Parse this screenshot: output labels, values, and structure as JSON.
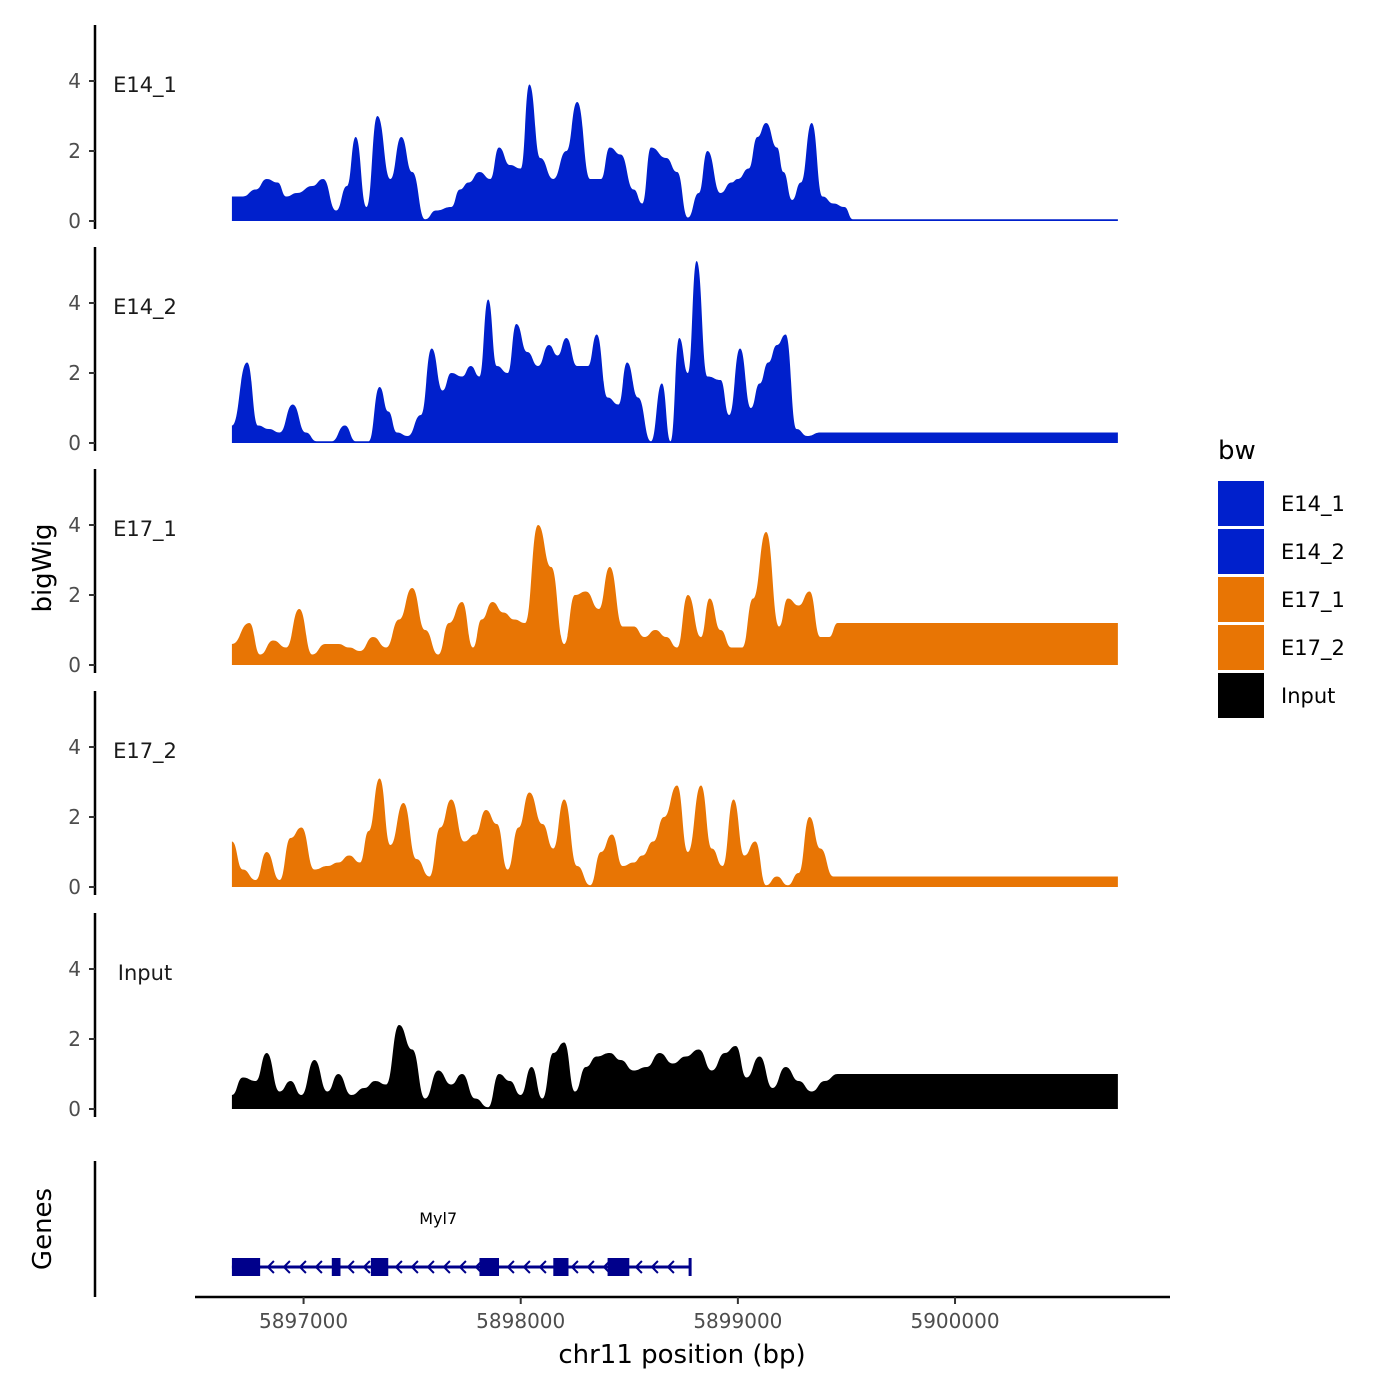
{
  "chart_data": {
    "type": "area",
    "x_axis": {
      "label": "chr11 position (bp)",
      "range": [
        5896500,
        5900990
      ],
      "ticks": [
        5897000,
        5898000,
        5899000,
        5900000
      ],
      "tick_labels": [
        "5897000",
        "5898000",
        "5899000",
        "5900000"
      ]
    },
    "y_axis": {
      "label": "bigWig",
      "range": [
        0,
        5.6
      ],
      "ticks": [
        0,
        2,
        4
      ],
      "tick_labels": [
        "0",
        "2",
        "4"
      ]
    },
    "data_start": 5896670,
    "data_end": 5900750,
    "series": [
      {
        "name": "E14_1",
        "color": "#0020CC",
        "peaks": [
          [
            5896670,
            0.7
          ],
          [
            5896720,
            0.7
          ],
          [
            5896780,
            0.9
          ],
          [
            5896830,
            1.2
          ],
          [
            5896880,
            1.1
          ],
          [
            5896920,
            0.7
          ],
          [
            5896970,
            0.8
          ],
          [
            5897040,
            1.0
          ],
          [
            5897090,
            1.2
          ],
          [
            5897150,
            0.3
          ],
          [
            5897200,
            1.0
          ],
          [
            5897240,
            2.4
          ],
          [
            5897290,
            0.4
          ],
          [
            5897340,
            3.0
          ],
          [
            5897400,
            1.2
          ],
          [
            5897450,
            2.4
          ],
          [
            5897500,
            1.4
          ],
          [
            5897560,
            0.05
          ],
          [
            5897610,
            0.3
          ],
          [
            5897680,
            0.4
          ],
          [
            5897720,
            0.9
          ],
          [
            5897760,
            1.1
          ],
          [
            5897810,
            1.4
          ],
          [
            5897860,
            1.2
          ],
          [
            5897900,
            2.1
          ],
          [
            5897950,
            1.6
          ],
          [
            5898000,
            1.5
          ],
          [
            5898040,
            3.9
          ],
          [
            5898090,
            1.8
          ],
          [
            5898150,
            1.2
          ],
          [
            5898210,
            2.0
          ],
          [
            5898260,
            3.4
          ],
          [
            5898320,
            1.2
          ],
          [
            5898370,
            1.2
          ],
          [
            5898410,
            2.1
          ],
          [
            5898460,
            1.9
          ],
          [
            5898520,
            0.9
          ],
          [
            5898560,
            0.5
          ],
          [
            5898600,
            2.1
          ],
          [
            5898670,
            1.8
          ],
          [
            5898720,
            1.4
          ],
          [
            5898770,
            0.1
          ],
          [
            5898820,
            0.8
          ],
          [
            5898860,
            2.0
          ],
          [
            5898920,
            0.8
          ],
          [
            5898970,
            1.1
          ],
          [
            5899000,
            1.2
          ],
          [
            5899050,
            1.5
          ],
          [
            5899090,
            2.4
          ],
          [
            5899130,
            2.8
          ],
          [
            5899180,
            2.1
          ],
          [
            5899210,
            1.4
          ],
          [
            5899250,
            0.6
          ],
          [
            5899290,
            1.1
          ],
          [
            5899340,
            2.8
          ],
          [
            5899390,
            0.7
          ],
          [
            5899440,
            0.5
          ],
          [
            5899490,
            0.4
          ],
          [
            5899530,
            0.05
          ]
        ]
      },
      {
        "name": "E14_2",
        "color": "#0020CC",
        "peaks": [
          [
            5896670,
            0.5
          ],
          [
            5896740,
            2.3
          ],
          [
            5896790,
            0.5
          ],
          [
            5896840,
            0.4
          ],
          [
            5896890,
            0.3
          ],
          [
            5896950,
            1.1
          ],
          [
            5897010,
            0.3
          ],
          [
            5897060,
            0.05
          ],
          [
            5897130,
            0.05
          ],
          [
            5897190,
            0.5
          ],
          [
            5897240,
            0.05
          ],
          [
            5897300,
            0.05
          ],
          [
            5897350,
            1.6
          ],
          [
            5897390,
            0.9
          ],
          [
            5897430,
            0.3
          ],
          [
            5897480,
            0.2
          ],
          [
            5897540,
            0.8
          ],
          [
            5897590,
            2.7
          ],
          [
            5897640,
            1.5
          ],
          [
            5897680,
            2.0
          ],
          [
            5897730,
            1.9
          ],
          [
            5897770,
            2.2
          ],
          [
            5897810,
            1.9
          ],
          [
            5897850,
            4.1
          ],
          [
            5897890,
            2.2
          ],
          [
            5897940,
            2.0
          ],
          [
            5897980,
            3.4
          ],
          [
            5898030,
            2.6
          ],
          [
            5898080,
            2.2
          ],
          [
            5898130,
            2.8
          ],
          [
            5898170,
            2.5
          ],
          [
            5898210,
            3.0
          ],
          [
            5898260,
            2.2
          ],
          [
            5898310,
            2.2
          ],
          [
            5898350,
            3.1
          ],
          [
            5898400,
            1.3
          ],
          [
            5898450,
            1.1
          ],
          [
            5898490,
            2.3
          ],
          [
            5898540,
            1.3
          ],
          [
            5898600,
            0.05
          ],
          [
            5898650,
            1.7
          ],
          [
            5898690,
            0.05
          ],
          [
            5898730,
            3.0
          ],
          [
            5898770,
            2.0
          ],
          [
            5898810,
            5.2
          ],
          [
            5898860,
            1.9
          ],
          [
            5898920,
            1.8
          ],
          [
            5898960,
            0.8
          ],
          [
            5899010,
            2.7
          ],
          [
            5899060,
            1.0
          ],
          [
            5899100,
            1.7
          ],
          [
            5899140,
            2.3
          ],
          [
            5899180,
            2.8
          ],
          [
            5899220,
            3.1
          ],
          [
            5899270,
            0.4
          ],
          [
            5899320,
            0.2
          ],
          [
            5899380,
            0.3
          ]
        ]
      },
      {
        "name": "E17_1",
        "color": "#E87504",
        "peaks": [
          [
            5896670,
            0.6
          ],
          [
            5896750,
            1.2
          ],
          [
            5896800,
            0.3
          ],
          [
            5896860,
            0.7
          ],
          [
            5896920,
            0.5
          ],
          [
            5896980,
            1.6
          ],
          [
            5897040,
            0.3
          ],
          [
            5897100,
            0.6
          ],
          [
            5897160,
            0.6
          ],
          [
            5897210,
            0.5
          ],
          [
            5897260,
            0.4
          ],
          [
            5897320,
            0.8
          ],
          [
            5897380,
            0.5
          ],
          [
            5897440,
            1.3
          ],
          [
            5897500,
            2.2
          ],
          [
            5897560,
            1.0
          ],
          [
            5897620,
            0.3
          ],
          [
            5897670,
            1.2
          ],
          [
            5897730,
            1.8
          ],
          [
            5897780,
            0.5
          ],
          [
            5897820,
            1.3
          ],
          [
            5897870,
            1.8
          ],
          [
            5897920,
            1.5
          ],
          [
            5897970,
            1.3
          ],
          [
            5898020,
            1.2
          ],
          [
            5898080,
            4.0
          ],
          [
            5898140,
            2.8
          ],
          [
            5898200,
            0.6
          ],
          [
            5898250,
            2.0
          ],
          [
            5898300,
            2.1
          ],
          [
            5898360,
            1.6
          ],
          [
            5898410,
            2.8
          ],
          [
            5898470,
            1.1
          ],
          [
            5898520,
            1.1
          ],
          [
            5898570,
            0.8
          ],
          [
            5898620,
            1.0
          ],
          [
            5898670,
            0.8
          ],
          [
            5898720,
            0.5
          ],
          [
            5898770,
            2.0
          ],
          [
            5898830,
            0.8
          ],
          [
            5898870,
            1.9
          ],
          [
            5898920,
            1.0
          ],
          [
            5898970,
            0.5
          ],
          [
            5899020,
            0.5
          ],
          [
            5899070,
            1.9
          ],
          [
            5899130,
            3.8
          ],
          [
            5899190,
            1.1
          ],
          [
            5899230,
            1.9
          ],
          [
            5899280,
            1.7
          ],
          [
            5899330,
            2.1
          ],
          [
            5899380,
            0.8
          ],
          [
            5899420,
            0.8
          ],
          [
            5899460,
            1.2
          ]
        ]
      },
      {
        "name": "E17_2",
        "color": "#E87504",
        "peaks": [
          [
            5896670,
            1.3
          ],
          [
            5896720,
            0.5
          ],
          [
            5896780,
            0.2
          ],
          [
            5896830,
            1.0
          ],
          [
            5896890,
            0.2
          ],
          [
            5896940,
            1.4
          ],
          [
            5896990,
            1.7
          ],
          [
            5897050,
            0.5
          ],
          [
            5897110,
            0.6
          ],
          [
            5897160,
            0.7
          ],
          [
            5897210,
            0.9
          ],
          [
            5897260,
            0.7
          ],
          [
            5897300,
            1.6
          ],
          [
            5897350,
            3.1
          ],
          [
            5897400,
            1.2
          ],
          [
            5897460,
            2.4
          ],
          [
            5897520,
            0.8
          ],
          [
            5897580,
            0.3
          ],
          [
            5897630,
            1.7
          ],
          [
            5897680,
            2.5
          ],
          [
            5897740,
            1.3
          ],
          [
            5897790,
            1.5
          ],
          [
            5897840,
            2.2
          ],
          [
            5897890,
            1.8
          ],
          [
            5897940,
            0.5
          ],
          [
            5897990,
            1.7
          ],
          [
            5898040,
            2.7
          ],
          [
            5898100,
            1.8
          ],
          [
            5898150,
            1.1
          ],
          [
            5898200,
            2.5
          ],
          [
            5898260,
            0.6
          ],
          [
            5898320,
            0.05
          ],
          [
            5898370,
            1.0
          ],
          [
            5898420,
            1.5
          ],
          [
            5898470,
            0.6
          ],
          [
            5898520,
            0.7
          ],
          [
            5898560,
            0.9
          ],
          [
            5898610,
            1.3
          ],
          [
            5898660,
            2.0
          ],
          [
            5898720,
            2.9
          ],
          [
            5898770,
            1.0
          ],
          [
            5898830,
            2.9
          ],
          [
            5898880,
            1.1
          ],
          [
            5898930,
            0.6
          ],
          [
            5898980,
            2.5
          ],
          [
            5899030,
            0.9
          ],
          [
            5899080,
            1.3
          ],
          [
            5899130,
            0.05
          ],
          [
            5899180,
            0.3
          ],
          [
            5899230,
            0.05
          ],
          [
            5899280,
            0.4
          ],
          [
            5899330,
            2.0
          ],
          [
            5899380,
            1.1
          ],
          [
            5899440,
            0.3
          ]
        ]
      },
      {
        "name": "Input",
        "color": "#000000",
        "peaks": [
          [
            5896670,
            0.4
          ],
          [
            5896720,
            0.9
          ],
          [
            5896780,
            0.8
          ],
          [
            5896830,
            1.6
          ],
          [
            5896890,
            0.5
          ],
          [
            5896940,
            0.8
          ],
          [
            5896990,
            0.4
          ],
          [
            5897050,
            1.4
          ],
          [
            5897110,
            0.5
          ],
          [
            5897160,
            1.0
          ],
          [
            5897220,
            0.4
          ],
          [
            5897280,
            0.6
          ],
          [
            5897330,
            0.8
          ],
          [
            5897380,
            0.7
          ],
          [
            5897440,
            2.4
          ],
          [
            5897500,
            1.7
          ],
          [
            5897560,
            0.3
          ],
          [
            5897620,
            1.1
          ],
          [
            5897680,
            0.7
          ],
          [
            5897730,
            1.0
          ],
          [
            5897790,
            0.3
          ],
          [
            5897850,
            0.05
          ],
          [
            5897900,
            1.0
          ],
          [
            5897950,
            0.8
          ],
          [
            5898000,
            0.4
          ],
          [
            5898050,
            1.2
          ],
          [
            5898100,
            0.3
          ],
          [
            5898150,
            1.6
          ],
          [
            5898200,
            1.9
          ],
          [
            5898250,
            0.5
          ],
          [
            5898300,
            1.2
          ],
          [
            5898350,
            1.5
          ],
          [
            5898410,
            1.6
          ],
          [
            5898460,
            1.4
          ],
          [
            5898520,
            1.1
          ],
          [
            5898580,
            1.2
          ],
          [
            5898640,
            1.6
          ],
          [
            5898700,
            1.3
          ],
          [
            5898760,
            1.5
          ],
          [
            5898820,
            1.7
          ],
          [
            5898880,
            1.1
          ],
          [
            5898940,
            1.6
          ],
          [
            5898990,
            1.8
          ],
          [
            5899040,
            0.9
          ],
          [
            5899100,
            1.5
          ],
          [
            5899160,
            0.6
          ],
          [
            5899220,
            1.2
          ],
          [
            5899280,
            0.8
          ],
          [
            5899340,
            0.5
          ],
          [
            5899400,
            0.8
          ],
          [
            5899460,
            1.0
          ]
        ]
      }
    ],
    "genes_track": {
      "label": "Genes",
      "gene_name": "Myl7",
      "color": "#00008B",
      "strand": "-",
      "start": 5896670,
      "end": 5898780,
      "exons": [
        [
          5896670,
          5896800
        ],
        [
          5897130,
          5897170
        ],
        [
          5897310,
          5897390
        ],
        [
          5897810,
          5897900
        ],
        [
          5898150,
          5898220
        ],
        [
          5898400,
          5898500
        ]
      ]
    },
    "legend": {
      "title": "bw",
      "position": "right",
      "entries": [
        {
          "label": "E14_1",
          "color": "#0020CC"
        },
        {
          "label": "E14_2",
          "color": "#0020CC"
        },
        {
          "label": "E17_1",
          "color": "#E87504"
        },
        {
          "label": "E17_2",
          "color": "#E87504"
        },
        {
          "label": "Input",
          "color": "#000000"
        }
      ]
    }
  }
}
